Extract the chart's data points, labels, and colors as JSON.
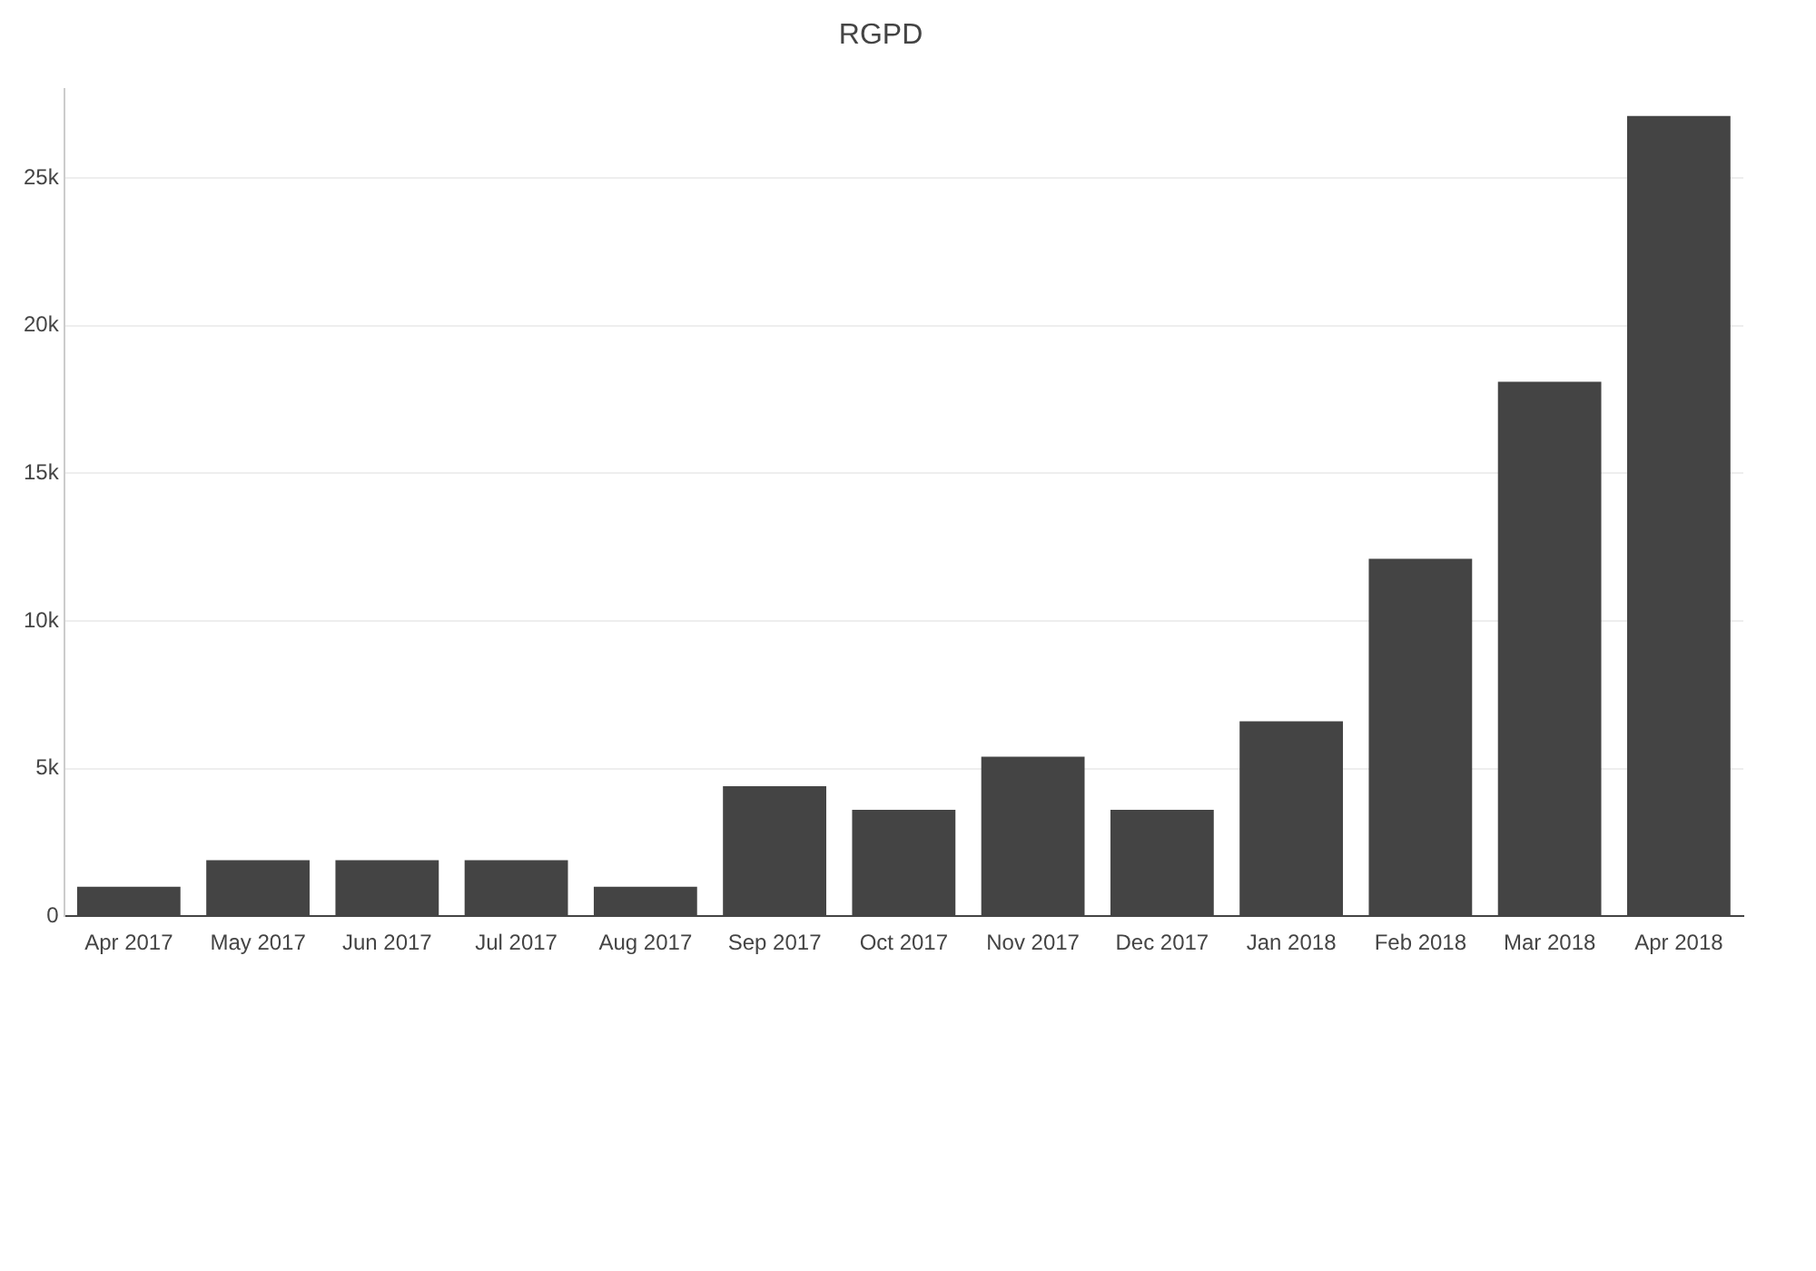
{
  "chart_data": {
    "type": "bar",
    "title": "RGPD",
    "categories": [
      "Apr 2017",
      "May 2017",
      "Jun 2017",
      "Jul 2017",
      "Aug 2017",
      "Sep 2017",
      "Oct 2017",
      "Nov 2017",
      "Dec 2017",
      "Jan 2018",
      "Feb 2018",
      "Mar 2018",
      "Apr 2018"
    ],
    "values": [
      1000,
      1900,
      1900,
      1900,
      1000,
      4400,
      3600,
      5400,
      3600,
      6600,
      12100,
      18100,
      27100
    ],
    "color": "#444444",
    "ylim": [
      0,
      28000
    ],
    "yticks": [
      0,
      {
        "value": 5000,
        "label": "5k"
      },
      {
        "value": 10000,
        "label": "10k"
      },
      {
        "value": 15000,
        "label": "15k"
      },
      {
        "value": 20000,
        "label": "20k"
      },
      {
        "value": 25000,
        "label": "25k"
      }
    ],
    "grid": "y",
    "legend": false
  }
}
